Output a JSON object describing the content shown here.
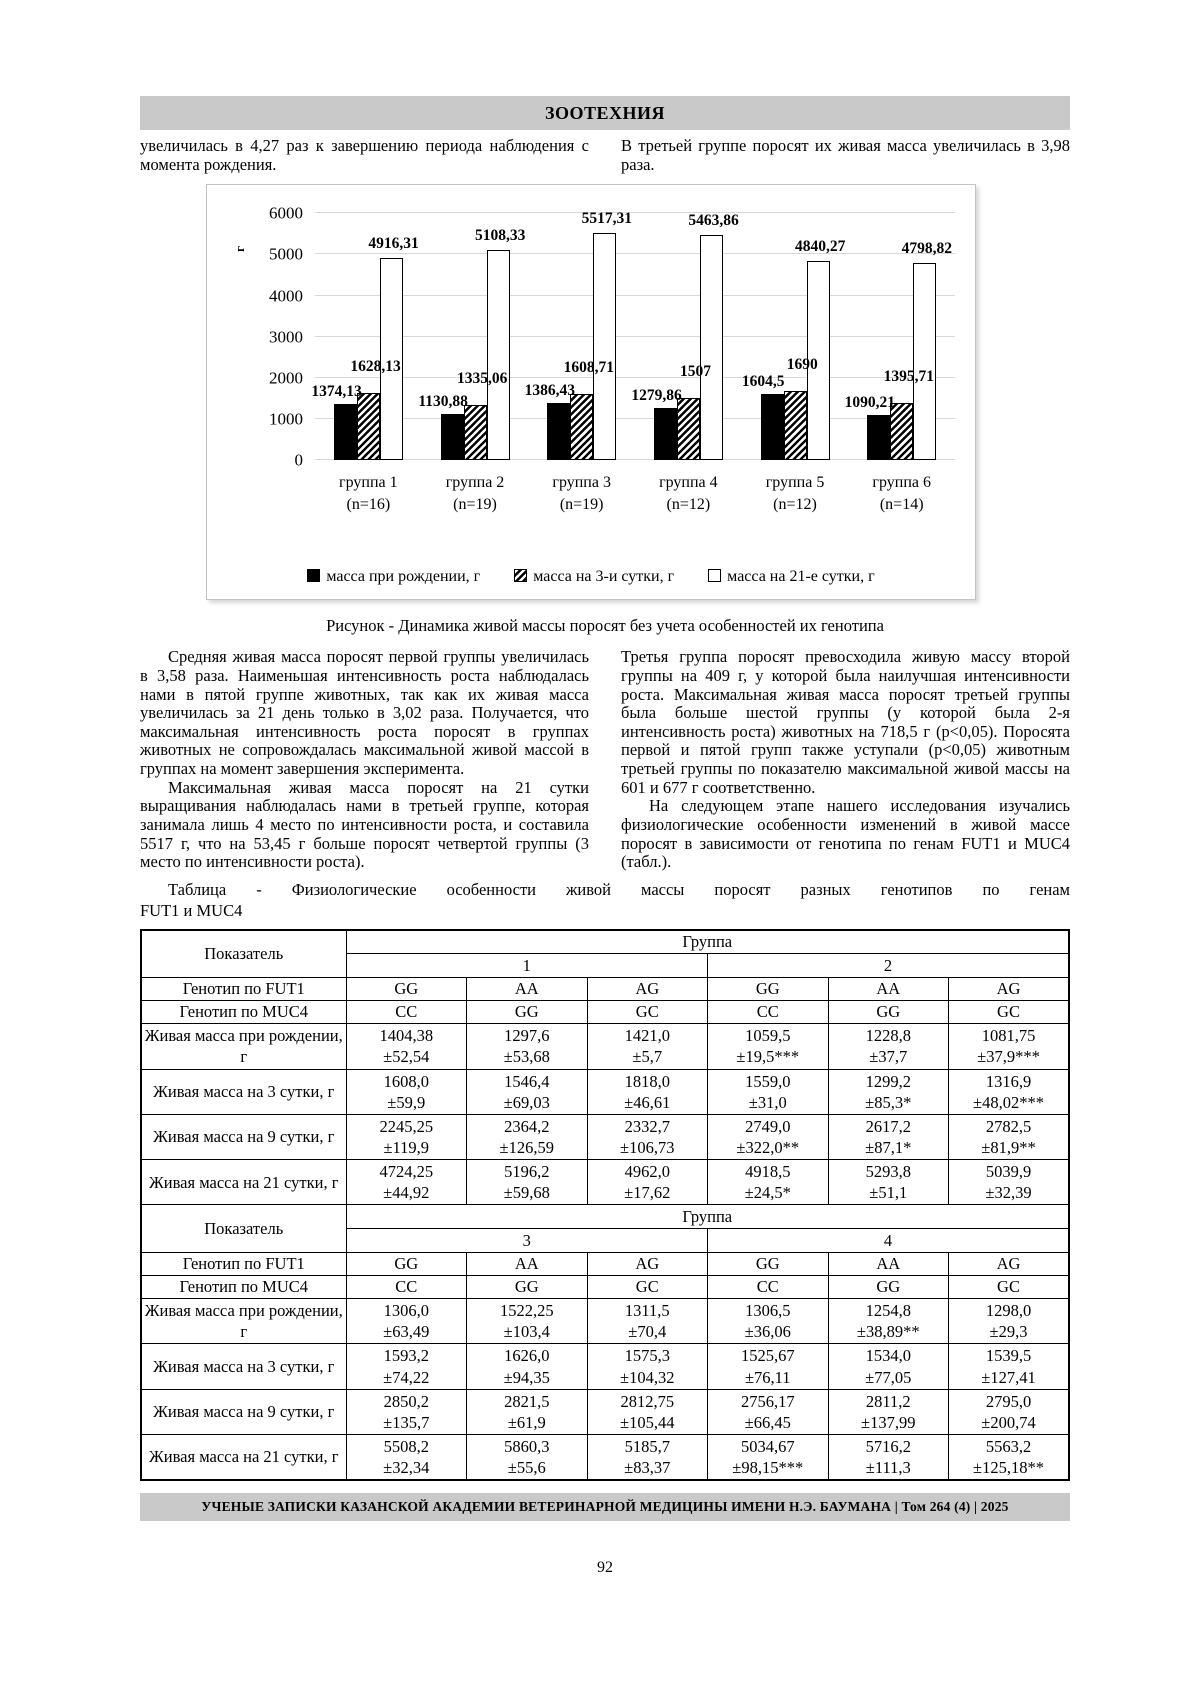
{
  "page": {
    "number": "92"
  },
  "header": {
    "title": "ЗООТЕХНИЯ",
    "bar_color": "#c9c9c9"
  },
  "top_text": {
    "left": "увеличилась в 4,27 раз к завершению периода наблюдения с момента рождения.",
    "right": "В третьей группе поросят их живая масса увеличилась в 3,98 раза."
  },
  "chart_data": {
    "type": "bar",
    "title": "",
    "xlabel": "",
    "ylabel": "г",
    "ylim": [
      0,
      6000
    ],
    "yticks": [
      0,
      1000,
      2000,
      3000,
      4000,
      5000,
      6000
    ],
    "grid": true,
    "legend_position": "bottom",
    "categories": [
      {
        "label": "группа 1",
        "n": "(n=16)"
      },
      {
        "label": "группа 2",
        "n": "(n=19)"
      },
      {
        "label": "группа 3",
        "n": "(n=19)"
      },
      {
        "label": "группа 4",
        "n": "(n=12)"
      },
      {
        "label": "группа 5",
        "n": "(n=12)"
      },
      {
        "label": "группа 6",
        "n": "(n=14)"
      }
    ],
    "series": [
      {
        "name": "масса при рождении, г",
        "style": "solid-black",
        "values": [
          1374.13,
          1130.88,
          1386.43,
          1279.86,
          1604.5,
          1090.21
        ],
        "labels": [
          "1374,13",
          "1130,88",
          "1386,43",
          "1279,86",
          "1604,5",
          "1090,21"
        ]
      },
      {
        "name": "масса на 3-и сутки, г",
        "style": "hatched",
        "values": [
          1628.13,
          1335.06,
          1608.71,
          1507,
          1690,
          1395.71
        ],
        "labels": [
          "1628,13",
          "1335,06",
          "1608,71",
          "1507",
          "1690",
          "1395,71"
        ]
      },
      {
        "name": "масса на 21-е сутки, г",
        "style": "white",
        "values": [
          4916.31,
          5108.33,
          5517.31,
          5463.86,
          4840.27,
          4798.82
        ],
        "labels": [
          "4916,31",
          "5108,33",
          "5517,31",
          "5463,86",
          "4840,27",
          "4798,82"
        ]
      }
    ]
  },
  "figure": {
    "caption": "Рисунок - Динамика живой массы поросят без учета особенностей их генотипа"
  },
  "body_text": {
    "left": [
      "Средняя живая масса поросят первой группы увеличилась в 3,58 раза. Наименьшая интенсивность роста наблюдалась нами в пятой группе животных, так как их живая масса увеличилась за 21 день только в 3,02 раза. Получается, что максимальная интенсивность роста поросят в группах животных не сопровождалась максимальной живой массой в группах на момент завершения эксперимента.",
      "Максимальная живая масса поросят на 21 сутки выращивания наблюдалась нами в третьей группе, которая занимала лишь 4 место по интенсивности роста, и составила 5517 г, что на 53,45 г больше поросят четвертой группы (3 место по интенсивности роста)."
    ],
    "right": [
      "Третья группа поросят превосходила живую массу второй группы на 409 г, у которой была наилучшая интенсивности роста.  Максимальная живая масса поросят третьей группы была больше шестой группы (у которой была 2-я интенсивность роста) животных на 718,5 г (р<0,05). Поросята первой и пятой групп также уступали (р<0,05) животным третьей группы по показателю максимальной живой массы на 601 и 677 г соответственно.",
      "На следующем этапе нашего исследования изучались физиологические особенности изменений в живой массе поросят в зависимости от генотипа по генам FUT1 и MUC4 (табл.)."
    ]
  },
  "table": {
    "caption_line1": "Таблица - Физиологические особенности живой массы поросят разных генотипов по генам",
    "caption_line2": "FUT1 и MUC4",
    "indicator_header": "Показатель",
    "group_header": "Группа",
    "fut1_label": "Генотип по FUT1",
    "muc4_label": "Генотип по MUC4",
    "sections": [
      {
        "group_numbers": [
          "1",
          "2"
        ],
        "fut1": [
          "GG",
          "AA",
          "AG",
          "GG",
          "AA",
          "AG"
        ],
        "muc4": [
          "CC",
          "GG",
          "GC",
          "CC",
          "GG",
          "GC"
        ],
        "rows": [
          {
            "label": "Живая масса при рождении, г",
            "values": [
              "1404,38\n±52,54",
              "1297,6\n±53,68",
              "1421,0\n±5,7",
              "1059,5\n±19,5***",
              "1228,8\n±37,7",
              "1081,75\n±37,9***"
            ]
          },
          {
            "label": "Живая масса на 3 сутки, г",
            "values": [
              "1608,0\n±59,9",
              "1546,4\n±69,03",
              "1818,0\n±46,61",
              "1559,0\n±31,0",
              "1299,2\n±85,3*",
              "1316,9\n±48,02***"
            ]
          },
          {
            "label": "Живая масса на 9 сутки, г",
            "values": [
              "2245,25\n±119,9",
              "2364,2\n±126,59",
              "2332,7\n±106,73",
              "2749,0\n±322,0**",
              "2617,2\n±87,1*",
              "2782,5\n±81,9**"
            ]
          },
          {
            "label": "Живая масса на 21 сутки, г",
            "values": [
              "4724,25\n±44,92",
              "5196,2\n±59,68",
              "4962,0\n±17,62",
              "4918,5\n±24,5*",
              "5293,8\n±51,1",
              "5039,9\n±32,39"
            ]
          }
        ]
      },
      {
        "group_numbers": [
          "3",
          "4"
        ],
        "fut1": [
          "GG",
          "AA",
          "AG",
          "GG",
          "AA",
          "AG"
        ],
        "muc4": [
          "CC",
          "GG",
          "GC",
          "CC",
          "GG",
          "GC"
        ],
        "rows": [
          {
            "label": "Живая масса при рождении, г",
            "values": [
              "1306,0\n±63,49",
              "1522,25\n±103,4",
              "1311,5\n±70,4",
              "1306,5\n±36,06",
              "1254,8\n±38,89**",
              "1298,0\n±29,3"
            ]
          },
          {
            "label": "Живая масса на 3 сутки, г",
            "values": [
              "1593,2\n±74,22",
              "1626,0\n±94,35",
              "1575,3\n±104,32",
              "1525,67\n±76,11",
              "1534,0\n±77,05",
              "1539,5\n±127,41"
            ]
          },
          {
            "label": "Живая масса на 9 сутки, г",
            "values": [
              "2850,2\n±135,7",
              "2821,5\n±61,9",
              "2812,75\n±105,44",
              "2756,17\n±66,45",
              "2811,2\n±137,99",
              "2795,0\n±200,74"
            ]
          },
          {
            "label": "Живая масса на 21 сутки, г",
            "values": [
              "5508,2\n±32,34",
              "5860,3\n±55,6",
              "5185,7\n±83,37",
              "5034,67\n±98,15***",
              "5716,2\n±111,3",
              "5563,2\n±125,18**"
            ]
          }
        ]
      }
    ]
  },
  "footer": {
    "text": "УЧЕНЫЕ ЗАПИСКИ КАЗАНСКОЙ АКАДЕМИИ ВЕТЕРИНАРНОЙ МЕДИЦИНЫ ИМЕНИ Н.Э. БАУМАНА | Том 264 (4) | 2025"
  }
}
